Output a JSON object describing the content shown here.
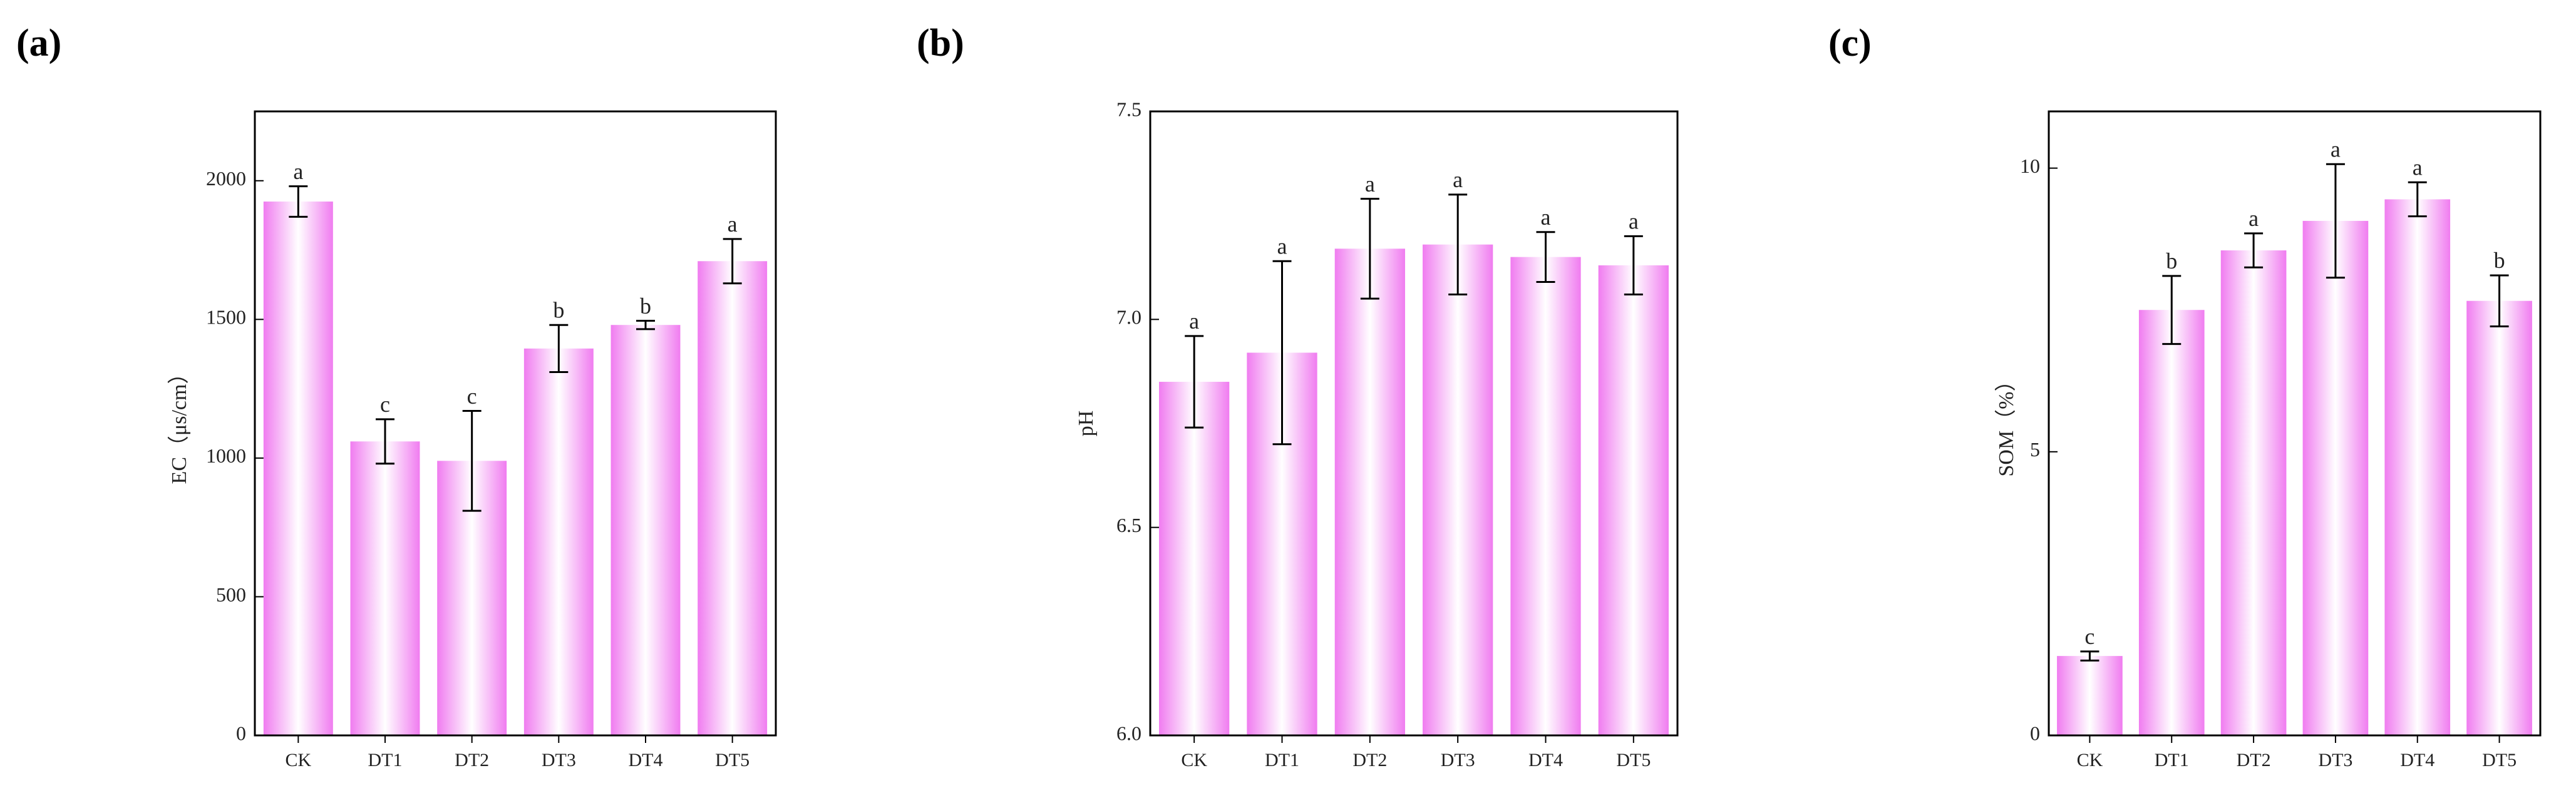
{
  "chart_data": [
    {
      "type": "bar",
      "panel": "(a)",
      "y_label": "EC（μs/cm）",
      "color": "#f07cf0",
      "categories": [
        "CK",
        "DT1",
        "DT2",
        "DT3",
        "DT4",
        "DT5"
      ],
      "values": [
        1925,
        1060,
        990,
        1395,
        1480,
        1710
      ],
      "errors": [
        55,
        80,
        180,
        85,
        15,
        80
      ],
      "labels": [
        "a",
        "c",
        "c",
        "b",
        "b",
        "a"
      ],
      "ylim": [
        0,
        2250
      ],
      "yticks": [
        0,
        500,
        1000,
        1500,
        2000
      ]
    },
    {
      "type": "bar",
      "panel": "(b)",
      "y_label": "pH",
      "color": "#f07cf0",
      "categories": [
        "CK",
        "DT1",
        "DT2",
        "DT3",
        "DT4",
        "DT5"
      ],
      "values": [
        6.85,
        6.92,
        7.17,
        7.18,
        7.15,
        7.13
      ],
      "errors": [
        0.11,
        0.22,
        0.12,
        0.12,
        0.06,
        0.07
      ],
      "labels": [
        "a",
        "a",
        "a",
        "a",
        "a",
        "a"
      ],
      "ylim": [
        6,
        7.5
      ],
      "yticks": [
        {
          "value": 6,
          "label": "6.0"
        },
        6.5,
        {
          "value": 7,
          "label": "7.0"
        },
        7.5
      ]
    },
    {
      "type": "bar",
      "panel": "(c)",
      "y_label": "SOM（%）",
      "color": "#f07cf0",
      "categories": [
        "CK",
        "DT1",
        "DT2",
        "DT3",
        "DT4",
        "DT5"
      ],
      "values": [
        1.4,
        7.5,
        8.55,
        9.07,
        9.45,
        7.66
      ],
      "errors": [
        0.08,
        0.6,
        0.3,
        1.0,
        0.3,
        0.45
      ],
      "labels": [
        "c",
        "b",
        "a",
        "a",
        "a",
        "b"
      ],
      "ylim": [
        0,
        11
      ],
      "yticks": [
        0,
        5,
        10
      ]
    }
  ]
}
